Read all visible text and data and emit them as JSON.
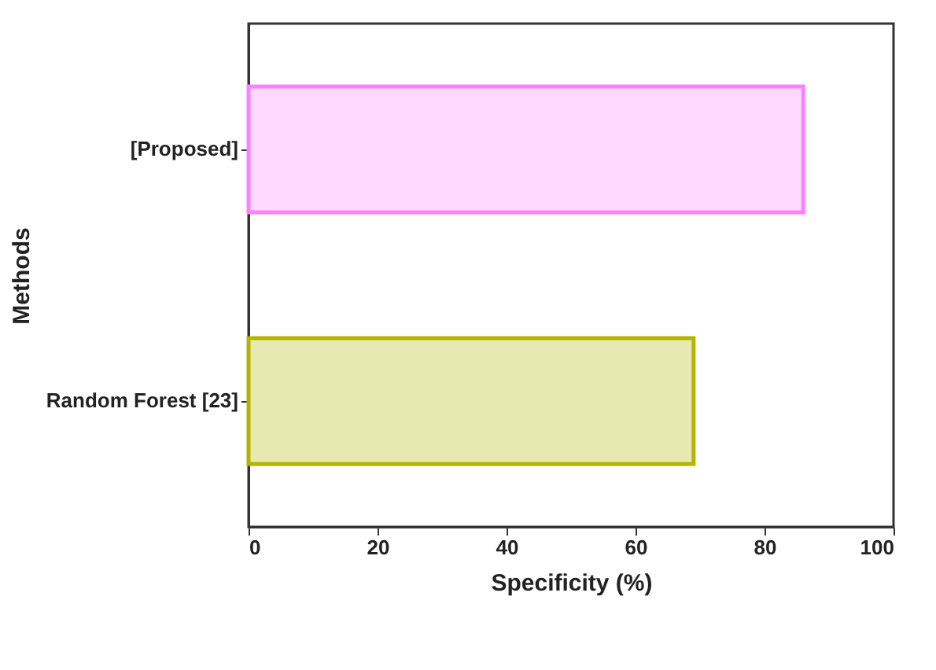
{
  "chart_data": {
    "type": "bar",
    "orientation": "horizontal",
    "xlabel": "Specificity (%)",
    "ylabel": "Methods",
    "categories": [
      "[Proposed]",
      "Random Forest [23]"
    ],
    "values": [
      86,
      69
    ],
    "colors": [
      "#ff80ff",
      "#b3b300"
    ],
    "xlim": [
      0,
      100
    ],
    "xticks": [
      0,
      20,
      40,
      60,
      80,
      100
    ]
  }
}
